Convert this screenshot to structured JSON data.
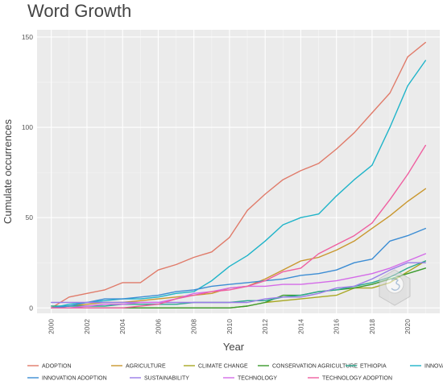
{
  "chart_data": {
    "type": "line",
    "title": "Word Growth",
    "xlabel": "Year",
    "ylabel": "Cumulate occurrences",
    "xlim": [
      1999.2,
      2021.8
    ],
    "ylim": [
      -3,
      154
    ],
    "x_ticks": [
      "2000",
      "2002",
      "2004",
      "2006",
      "2008",
      "2010",
      "2012",
      "2014",
      "2016",
      "2018",
      "2020"
    ],
    "y_ticks": [
      "0",
      "50",
      "100",
      "150"
    ],
    "grid": true,
    "legend_position": "bottom",
    "x": [
      2000,
      2001,
      2002,
      2003,
      2004,
      2005,
      2006,
      2007,
      2008,
      2009,
      2010,
      2011,
      2012,
      2013,
      2014,
      2015,
      2016,
      2017,
      2018,
      2019,
      2020,
      2021
    ],
    "series": [
      {
        "name": "ADOPTION",
        "color": "#E07B6A",
        "values": [
          0,
          6,
          8,
          10,
          14,
          14,
          21,
          24,
          28,
          31,
          39,
          54,
          63,
          71,
          76,
          80,
          88,
          97,
          108,
          119,
          139,
          147
        ]
      },
      {
        "name": "AGRICULTURE",
        "color": "#C9972E",
        "values": [
          0,
          1,
          2,
          3,
          3,
          4,
          5,
          6,
          7,
          8,
          11,
          12,
          16,
          21,
          26,
          28,
          32,
          37,
          44,
          51,
          59,
          66
        ]
      },
      {
        "name": "CLIMATE CHANGE",
        "color": "#A8A823",
        "values": [
          0,
          0,
          0,
          0,
          0,
          0,
          0,
          0,
          0,
          0,
          0,
          1,
          3,
          4,
          5,
          6,
          7,
          11,
          11,
          14,
          20,
          26
        ]
      },
      {
        "name": "CONSERVATION AGRICULTURE",
        "color": "#3A9A2C",
        "values": [
          0,
          0,
          0,
          0,
          0,
          0,
          0,
          0,
          0,
          0,
          0,
          1,
          3,
          7,
          7,
          9,
          10,
          11,
          13,
          16,
          19,
          22
        ]
      },
      {
        "name": "ETHIOPIA",
        "color": "#2AA88E",
        "values": [
          1,
          1,
          1,
          1,
          2,
          2,
          2,
          2,
          3,
          3,
          3,
          4,
          4,
          6,
          7,
          9,
          10,
          12,
          14,
          17,
          22,
          26
        ]
      },
      {
        "name": "INNOVATION",
        "color": "#1FB4C9",
        "values": [
          0,
          2,
          3,
          4,
          5,
          5,
          6,
          8,
          9,
          15,
          23,
          29,
          37,
          46,
          50,
          52,
          62,
          71,
          79,
          100,
          123,
          137
        ]
      },
      {
        "name": "INNOVATION ADOPTION",
        "color": "#3C8DD4",
        "values": [
          0,
          1,
          3,
          5,
          5,
          6,
          7,
          9,
          10,
          12,
          13,
          14,
          15,
          16,
          18,
          19,
          21,
          25,
          27,
          37,
          40,
          44
        ]
      },
      {
        "name": "SUSTAINABILITY",
        "color": "#9A7CE8",
        "values": [
          3,
          3,
          3,
          3,
          3,
          3,
          3,
          3,
          3,
          3,
          3,
          3,
          5,
          6,
          6,
          8,
          11,
          12,
          16,
          21,
          25,
          25
        ]
      },
      {
        "name": "TECHNOLOGY",
        "color": "#D46BE8",
        "values": [
          0,
          0,
          1,
          2,
          2,
          3,
          3,
          5,
          8,
          9,
          11,
          12,
          12,
          13,
          13,
          14,
          15,
          17,
          19,
          22,
          26,
          30
        ]
      },
      {
        "name": "TECHNOLOGY ADOPTION",
        "color": "#EF5FA0",
        "values": [
          0,
          0,
          0,
          0,
          0,
          1,
          2,
          5,
          7,
          9,
          10,
          12,
          15,
          20,
          22,
          30,
          35,
          40,
          47,
          60,
          74,
          90
        ]
      }
    ]
  }
}
